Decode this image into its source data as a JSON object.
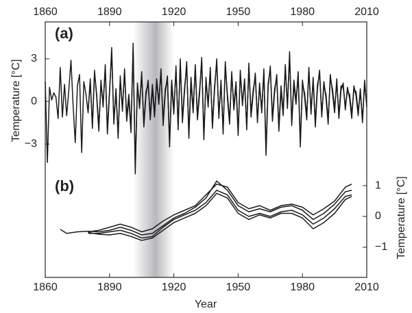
{
  "chart_data": [
    {
      "type": "line",
      "label": "(a)",
      "ylabel": "Temperature [°C]",
      "xlim": [
        1860,
        2010
      ],
      "xticks": [
        1860,
        1890,
        1920,
        1950,
        1980,
        2010
      ],
      "ylim": [
        -5.3,
        5.6
      ],
      "yticks": [
        {
          "value": -3,
          "label": "−3"
        },
        0,
        3
      ],
      "highlight_span": [
        1901,
        1920
      ],
      "x": [
        1860,
        1861,
        1862,
        1863,
        1864,
        1865,
        1866,
        1867,
        1868,
        1869,
        1870,
        1871,
        1872,
        1873,
        1874,
        1875,
        1876,
        1877,
        1878,
        1879,
        1880,
        1881,
        1882,
        1883,
        1884,
        1885,
        1886,
        1887,
        1888,
        1889,
        1890,
        1891,
        1892,
        1893,
        1894,
        1895,
        1896,
        1897,
        1898,
        1899,
        1900,
        1901,
        1902,
        1903,
        1904,
        1905,
        1906,
        1907,
        1908,
        1909,
        1910,
        1911,
        1912,
        1913,
        1914,
        1915,
        1916,
        1917,
        1918,
        1919,
        1920,
        1921,
        1922,
        1923,
        1924,
        1925,
        1926,
        1927,
        1928,
        1929,
        1930,
        1931,
        1932,
        1933,
        1934,
        1935,
        1936,
        1937,
        1938,
        1939,
        1940,
        1941,
        1942,
        1943,
        1944,
        1945,
        1946,
        1947,
        1948,
        1949,
        1950,
        1951,
        1952,
        1953,
        1954,
        1955,
        1956,
        1957,
        1958,
        1959,
        1960,
        1961,
        1962,
        1963,
        1964,
        1965,
        1966,
        1967,
        1968,
        1969,
        1970,
        1971,
        1972,
        1973,
        1974,
        1975,
        1976,
        1977,
        1978,
        1979,
        1980,
        1981,
        1982,
        1983,
        1984,
        1985,
        1986,
        1987,
        1988,
        1989,
        1990,
        1991,
        1992,
        1993,
        1994,
        1995,
        1996,
        1997,
        1998,
        1999,
        2000,
        2001,
        2002,
        2003,
        2004,
        2005,
        2006,
        2007,
        2008,
        2009,
        2010
      ],
      "series": [
        {
          "color": "#1a1a1a",
          "values": [
            1.4,
            -4.3,
            1.0,
            0.1,
            0.6,
            0.3,
            -1.2,
            2.4,
            -1.1,
            1.2,
            -1.0,
            0.8,
            2.9,
            -0.3,
            -2.9,
            1.1,
            1.9,
            -3.6,
            1.4,
            0.5,
            -0.8,
            1.6,
            -1.9,
            2.2,
            0.3,
            -2.1,
            1.5,
            -0.4,
            2.6,
            -2.3,
            0.6,
            3.8,
            -1.6,
            0.9,
            -2.6,
            1.8,
            -0.7,
            2.3,
            -1.4,
            0.2,
            -2.2,
            4.1,
            -5.1,
            1.3,
            -0.5,
            2.1,
            -1.8,
            0.4,
            1.5,
            -1.3,
            0.9,
            -1.1,
            1.6,
            -0.2,
            2.3,
            -1.7,
            0.6,
            1.8,
            -3.2,
            1.2,
            -0.9,
            2.5,
            -2.0,
            3.0,
            -1.5,
            0.7,
            2.8,
            -2.6,
            1.4,
            -0.8,
            2.6,
            -1.3,
            0.5,
            3.1,
            -2.7,
            1.7,
            -0.4,
            2.4,
            -1.9,
            0.8,
            3.0,
            -1.2,
            1.5,
            -2.3,
            2.8,
            0.2,
            -1.6,
            2.1,
            -0.6,
            1.1,
            -2.4,
            2.2,
            -0.3,
            1.6,
            -2.0,
            2.7,
            -1.1,
            0.5,
            2.0,
            -1.5,
            1.3,
            -0.8,
            2.3,
            -3.8,
            1.0,
            2.5,
            -1.4,
            0.6,
            1.9,
            -2.1,
            0.8,
            -1.0,
            2.6,
            -0.5,
            3.5,
            -1.7,
            1.2,
            -0.2,
            2.1,
            -3.2,
            1.5,
            0.3,
            -1.3,
            2.4,
            -0.9,
            1.7,
            -1.8,
            0.9,
            2.2,
            -1.1,
            1.4,
            0.2,
            -1.6,
            1.9,
            0.6,
            -0.8,
            1.6,
            -1.2,
            0.8,
            1.3,
            -0.6,
            1.0,
            0.2,
            -1.2,
            1.1,
            0.4,
            -1.0,
            0.9,
            -1.5,
            1.5,
            -0.4
          ]
        },
        {
          "color": "#1a1a1a",
          "values": [
            null,
            null,
            null,
            null,
            null,
            null,
            null,
            null,
            null,
            null,
            null,
            null,
            null,
            null,
            null,
            null,
            null,
            null,
            null,
            null,
            -0.6,
            1.3,
            -1.6,
            2.0,
            0.5,
            -1.8,
            1.2,
            -0.1,
            2.3,
            -2.0,
            0.8,
            3.4,
            -1.3,
            0.6,
            -2.3,
            1.5,
            -0.4,
            2.0,
            -1.1,
            0.5,
            -1.9,
            3.7,
            -4.6,
            1.0,
            -0.2,
            1.8,
            -1.5,
            0.7,
            1.2,
            -1.0,
            1.2,
            -0.8,
            1.3,
            0.1,
            2.0,
            -1.4,
            0.9,
            1.5,
            -2.9,
            1.5,
            -0.6,
            2.2,
            -1.7,
            2.7,
            -1.2,
            1.0,
            2.5,
            -2.3,
            1.7,
            -0.5,
            2.3,
            -1.0,
            0.8,
            2.8,
            -2.4,
            1.4,
            -0.1,
            2.1,
            -1.6,
            1.1,
            2.7,
            -0.9,
            1.2,
            -2.0,
            2.5,
            0.5,
            -1.3,
            1.8,
            -0.3,
            1.4,
            -2.1,
            1.9,
            0.0,
            1.3,
            -1.7,
            2.4,
            -0.8,
            0.8,
            1.7,
            -1.2,
            1.0,
            -0.5,
            2.0,
            -3.4,
            1.3,
            2.2,
            -1.1,
            0.9,
            1.6,
            -1.8,
            1.1,
            -0.7,
            2.3,
            -0.2,
            3.1,
            -1.4,
            1.5,
            0.1,
            1.8,
            -2.9,
            1.2,
            0.6,
            -1.0,
            2.1,
            -0.6,
            1.4,
            -1.5,
            1.2,
            1.9,
            -0.8,
            1.1,
            0.5,
            -1.3,
            1.6,
            0.9,
            -0.5,
            1.3,
            -0.9,
            1.1,
            1.0,
            -0.3,
            0.7,
            0.5,
            -0.9,
            0.8,
            0.7,
            -0.7,
            0.6,
            -1.2,
            1.2,
            -0.1
          ]
        }
      ]
    },
    {
      "type": "line",
      "label": "(b)",
      "ylabel": "Temperature [°C]",
      "xlabel": "Year",
      "xlim": [
        1860,
        2010
      ],
      "xticks": [
        1860,
        1890,
        1920,
        1950,
        1980,
        2010
      ],
      "y2lim": [
        -1.98,
        1.29
      ],
      "y2ticks": [
        {
          "value": -1,
          "label": "−1"
        },
        0,
        1
      ],
      "x": [
        1867,
        1870,
        1875,
        1880,
        1885,
        1890,
        1895,
        1900,
        1905,
        1910,
        1915,
        1920,
        1925,
        1930,
        1935,
        1940,
        1945,
        1950,
        1955,
        1960,
        1965,
        1970,
        1975,
        1980,
        1985,
        1990,
        1995,
        2000,
        2003
      ],
      "series": [
        {
          "color": "#1a1a1a",
          "axis": "y2",
          "values": [
            -0.42,
            -0.55,
            -0.5,
            -0.48,
            -0.5,
            -0.45,
            -0.35,
            -0.45,
            -0.6,
            -0.55,
            -0.3,
            -0.05,
            0.1,
            0.3,
            0.6,
            1.15,
            0.85,
            0.35,
            0.15,
            0.25,
            0.15,
            0.3,
            0.35,
            0.2,
            -0.1,
            0.1,
            0.4,
            0.8,
            0.85
          ]
        },
        {
          "color": "#1a1a1a",
          "axis": "y2",
          "values": [
            null,
            null,
            null,
            -0.5,
            -0.45,
            -0.35,
            -0.25,
            -0.35,
            -0.5,
            -0.4,
            -0.15,
            0.05,
            0.2,
            0.35,
            0.7,
            1.05,
            0.95,
            0.45,
            0.25,
            0.35,
            0.2,
            0.35,
            0.4,
            0.3,
            0.05,
            0.25,
            0.5,
            0.95,
            1.05
          ]
        },
        {
          "color": "#1a1a1a",
          "axis": "y2",
          "values": [
            null,
            null,
            null,
            -0.55,
            -0.55,
            -0.5,
            -0.45,
            -0.55,
            -0.7,
            -0.65,
            -0.35,
            -0.1,
            0.05,
            0.2,
            0.45,
            0.85,
            0.7,
            0.2,
            0.0,
            0.1,
            0.0,
            0.15,
            0.2,
            0.05,
            -0.25,
            -0.05,
            0.25,
            0.65,
            0.7
          ]
        },
        {
          "color": "#1a1a1a",
          "axis": "y2",
          "values": [
            null,
            null,
            null,
            -0.52,
            -0.58,
            -0.6,
            -0.55,
            -0.65,
            -0.78,
            -0.7,
            -0.45,
            -0.2,
            -0.05,
            0.1,
            0.35,
            0.75,
            0.6,
            0.1,
            -0.1,
            0.05,
            -0.05,
            0.1,
            0.1,
            -0.05,
            -0.4,
            -0.2,
            0.1,
            0.55,
            0.65
          ]
        }
      ]
    }
  ]
}
